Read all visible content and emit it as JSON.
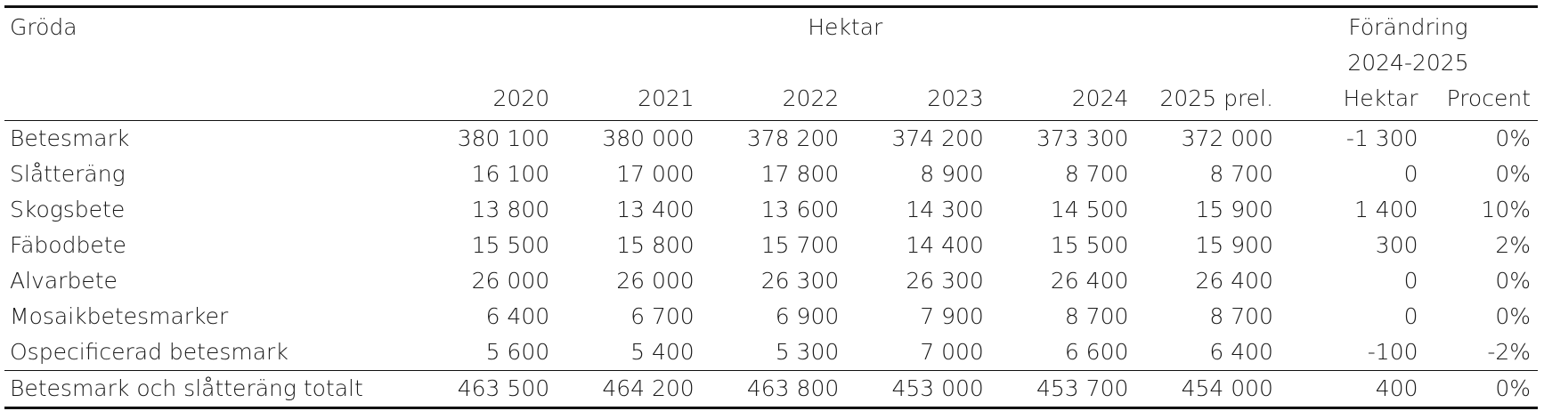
{
  "table": {
    "header": {
      "crop_label": "Gröda",
      "group_label": "Hektar",
      "change_label": "Förändring",
      "change_period": "2024-2025",
      "years": [
        "2020",
        "2021",
        "2022",
        "2023",
        "2024",
        "2025 prel."
      ],
      "change_cols": [
        "Hektar",
        "Procent"
      ]
    },
    "rows": [
      {
        "name": "Betesmark",
        "values": [
          "380 100",
          "380 000",
          "378 200",
          "374 200",
          "373 300",
          "372 000"
        ],
        "change_ha": "-1 300",
        "change_pct": "0%"
      },
      {
        "name": "Slåtteräng",
        "values": [
          "16 100",
          "17 000",
          "17 800",
          "8 900",
          "8 700",
          "8 700"
        ],
        "change_ha": "0",
        "change_pct": "0%"
      },
      {
        "name": "Skogsbete",
        "values": [
          "13 800",
          "13 400",
          "13 600",
          "14 300",
          "14 500",
          "15 900"
        ],
        "change_ha": "1 400",
        "change_pct": "10%"
      },
      {
        "name": "Fäbodbete",
        "values": [
          "15 500",
          "15 800",
          "15 700",
          "14 400",
          "15 500",
          "15 900"
        ],
        "change_ha": "300",
        "change_pct": "2%"
      },
      {
        "name": "Alvarbete",
        "values": [
          "26 000",
          "26 000",
          "26 300",
          "26 300",
          "26 400",
          "26 400"
        ],
        "change_ha": "0",
        "change_pct": "0%"
      },
      {
        "name": "Mosaikbetesmarker",
        "values": [
          "6 400",
          "6 700",
          "6 900",
          "7 900",
          "8 700",
          "8 700"
        ],
        "change_ha": "0",
        "change_pct": "0%"
      },
      {
        "name": "Ospecificerad betesmark",
        "values": [
          "5 600",
          "5 400",
          "5 300",
          "7 000",
          "6 600",
          "6 400"
        ],
        "change_ha": "-100",
        "change_pct": "-2%"
      }
    ],
    "total": {
      "name": "Betesmark och slåtteräng totalt",
      "values": [
        "463 500",
        "464 200",
        "463 800",
        "453 000",
        "453 700",
        "454 000"
      ],
      "change_ha": "400",
      "change_pct": "0%"
    }
  }
}
